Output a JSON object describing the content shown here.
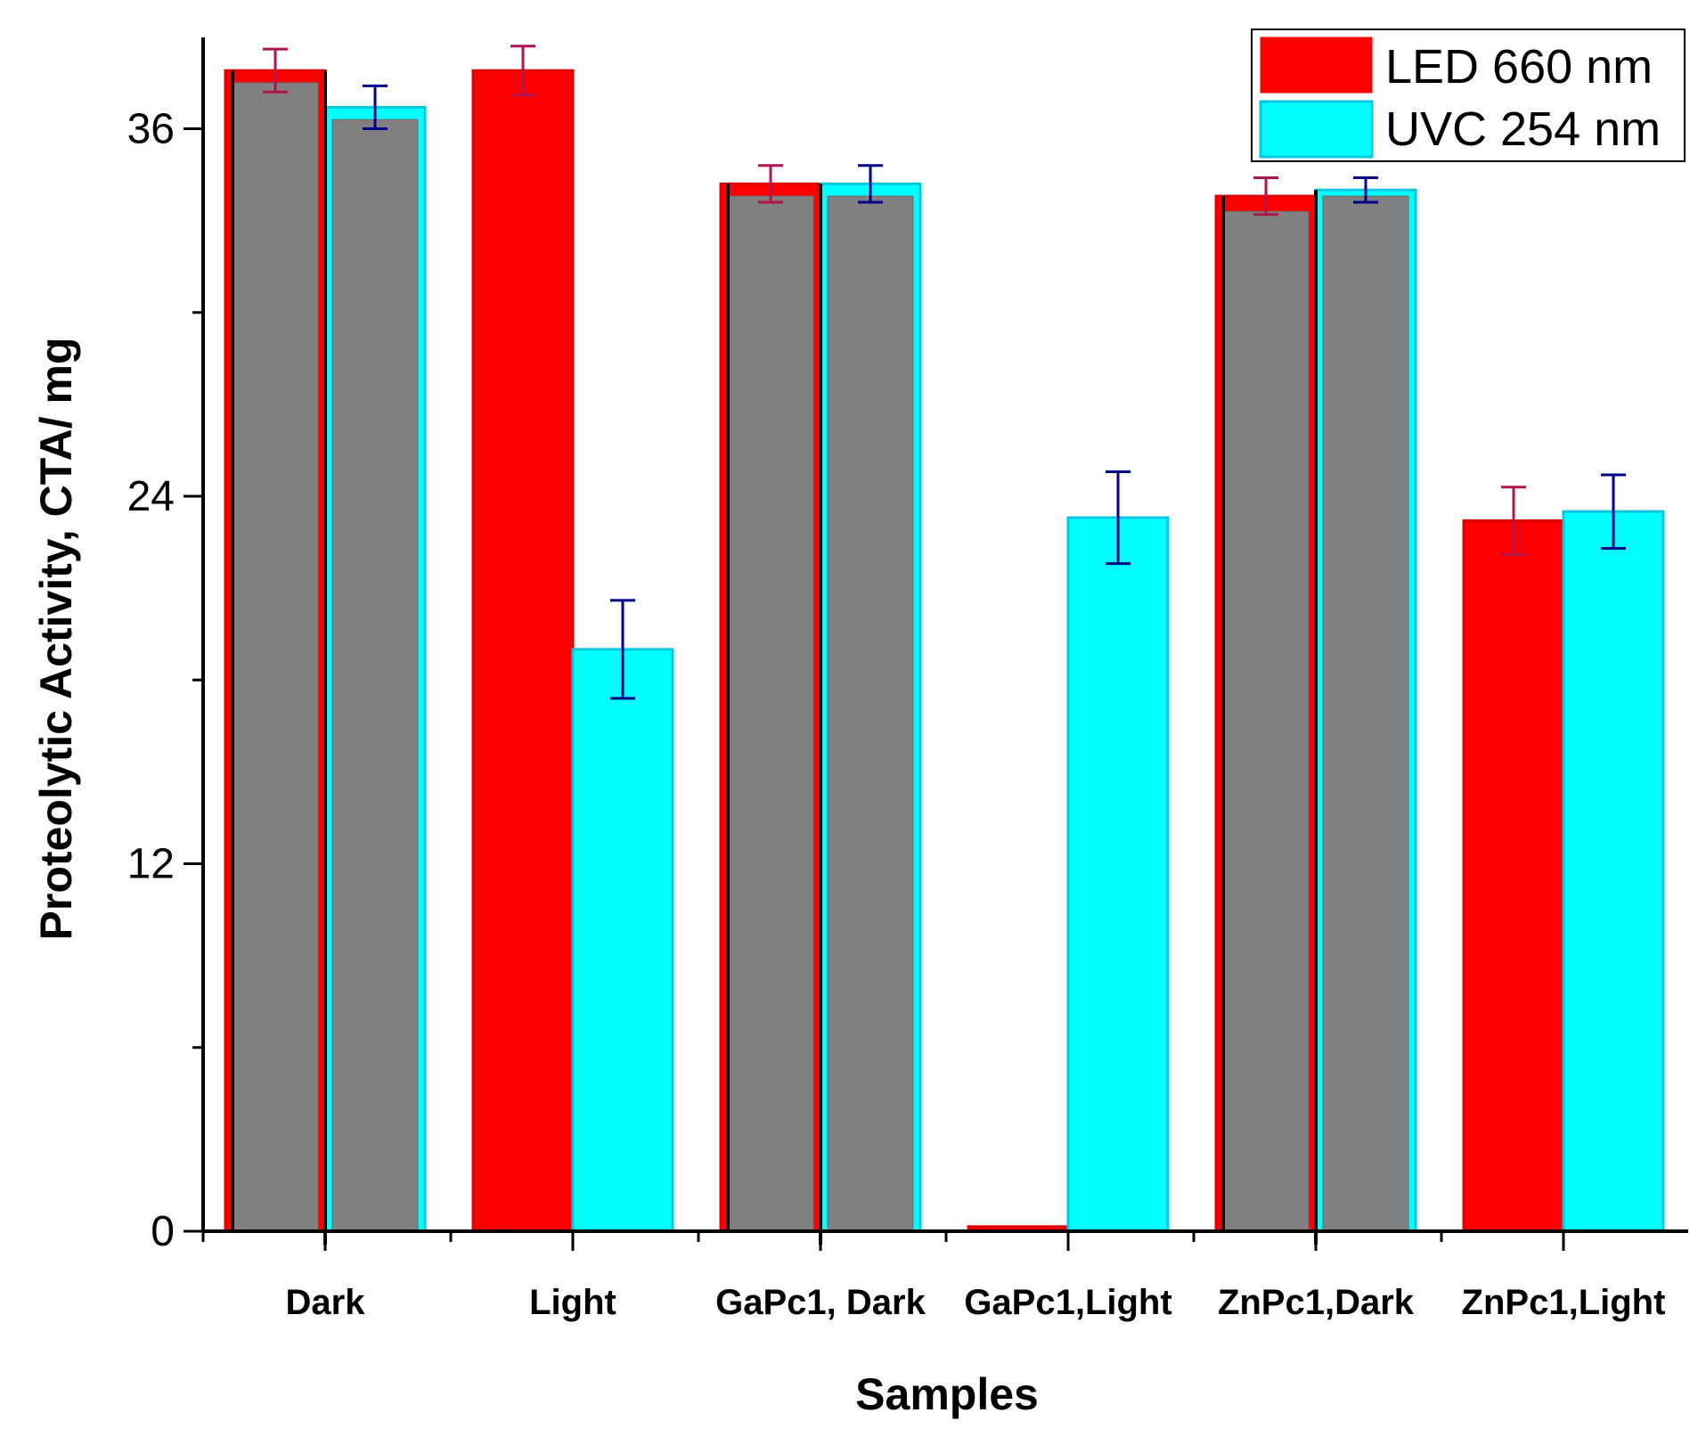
{
  "chart_data": {
    "type": "bar",
    "title": "",
    "xlabel": "Samples",
    "ylabel": "Proteolytic Activity, CTA/ mg",
    "ylim": [
      0,
      39
    ],
    "yticks": [
      "0",
      "12",
      "24",
      "36"
    ],
    "categories": [
      "Dark",
      "Light",
      "GaPc1, Dark",
      "GaPc1,Light",
      "ZnPc1,Dark",
      "ZnPc1,Light"
    ],
    "series": [
      {
        "name": "LED 660 nm",
        "color": "#ff0000",
        "errorColor": "#b0144f",
        "values": [
          37.9,
          37.9,
          34.2,
          0.15,
          33.8,
          23.2
        ],
        "errors": [
          0.7,
          0.8,
          0.6,
          0,
          0.6,
          1.1
        ],
        "overlay": [
          37.5,
          null,
          33.8,
          null,
          33.3,
          null
        ]
      },
      {
        "name": "UVC 254 nm",
        "color": "#00ffff",
        "errorColor": "#00008b",
        "values": [
          36.7,
          19.0,
          34.2,
          23.3,
          34.0,
          23.5
        ],
        "errors": [
          0.7,
          1.6,
          0.6,
          1.5,
          0.4,
          1.2
        ],
        "overlay": [
          36.3,
          null,
          33.8,
          null,
          33.8,
          null
        ]
      }
    ],
    "overlayColor": "#808080",
    "legend": {
      "position": "top-right"
    }
  }
}
